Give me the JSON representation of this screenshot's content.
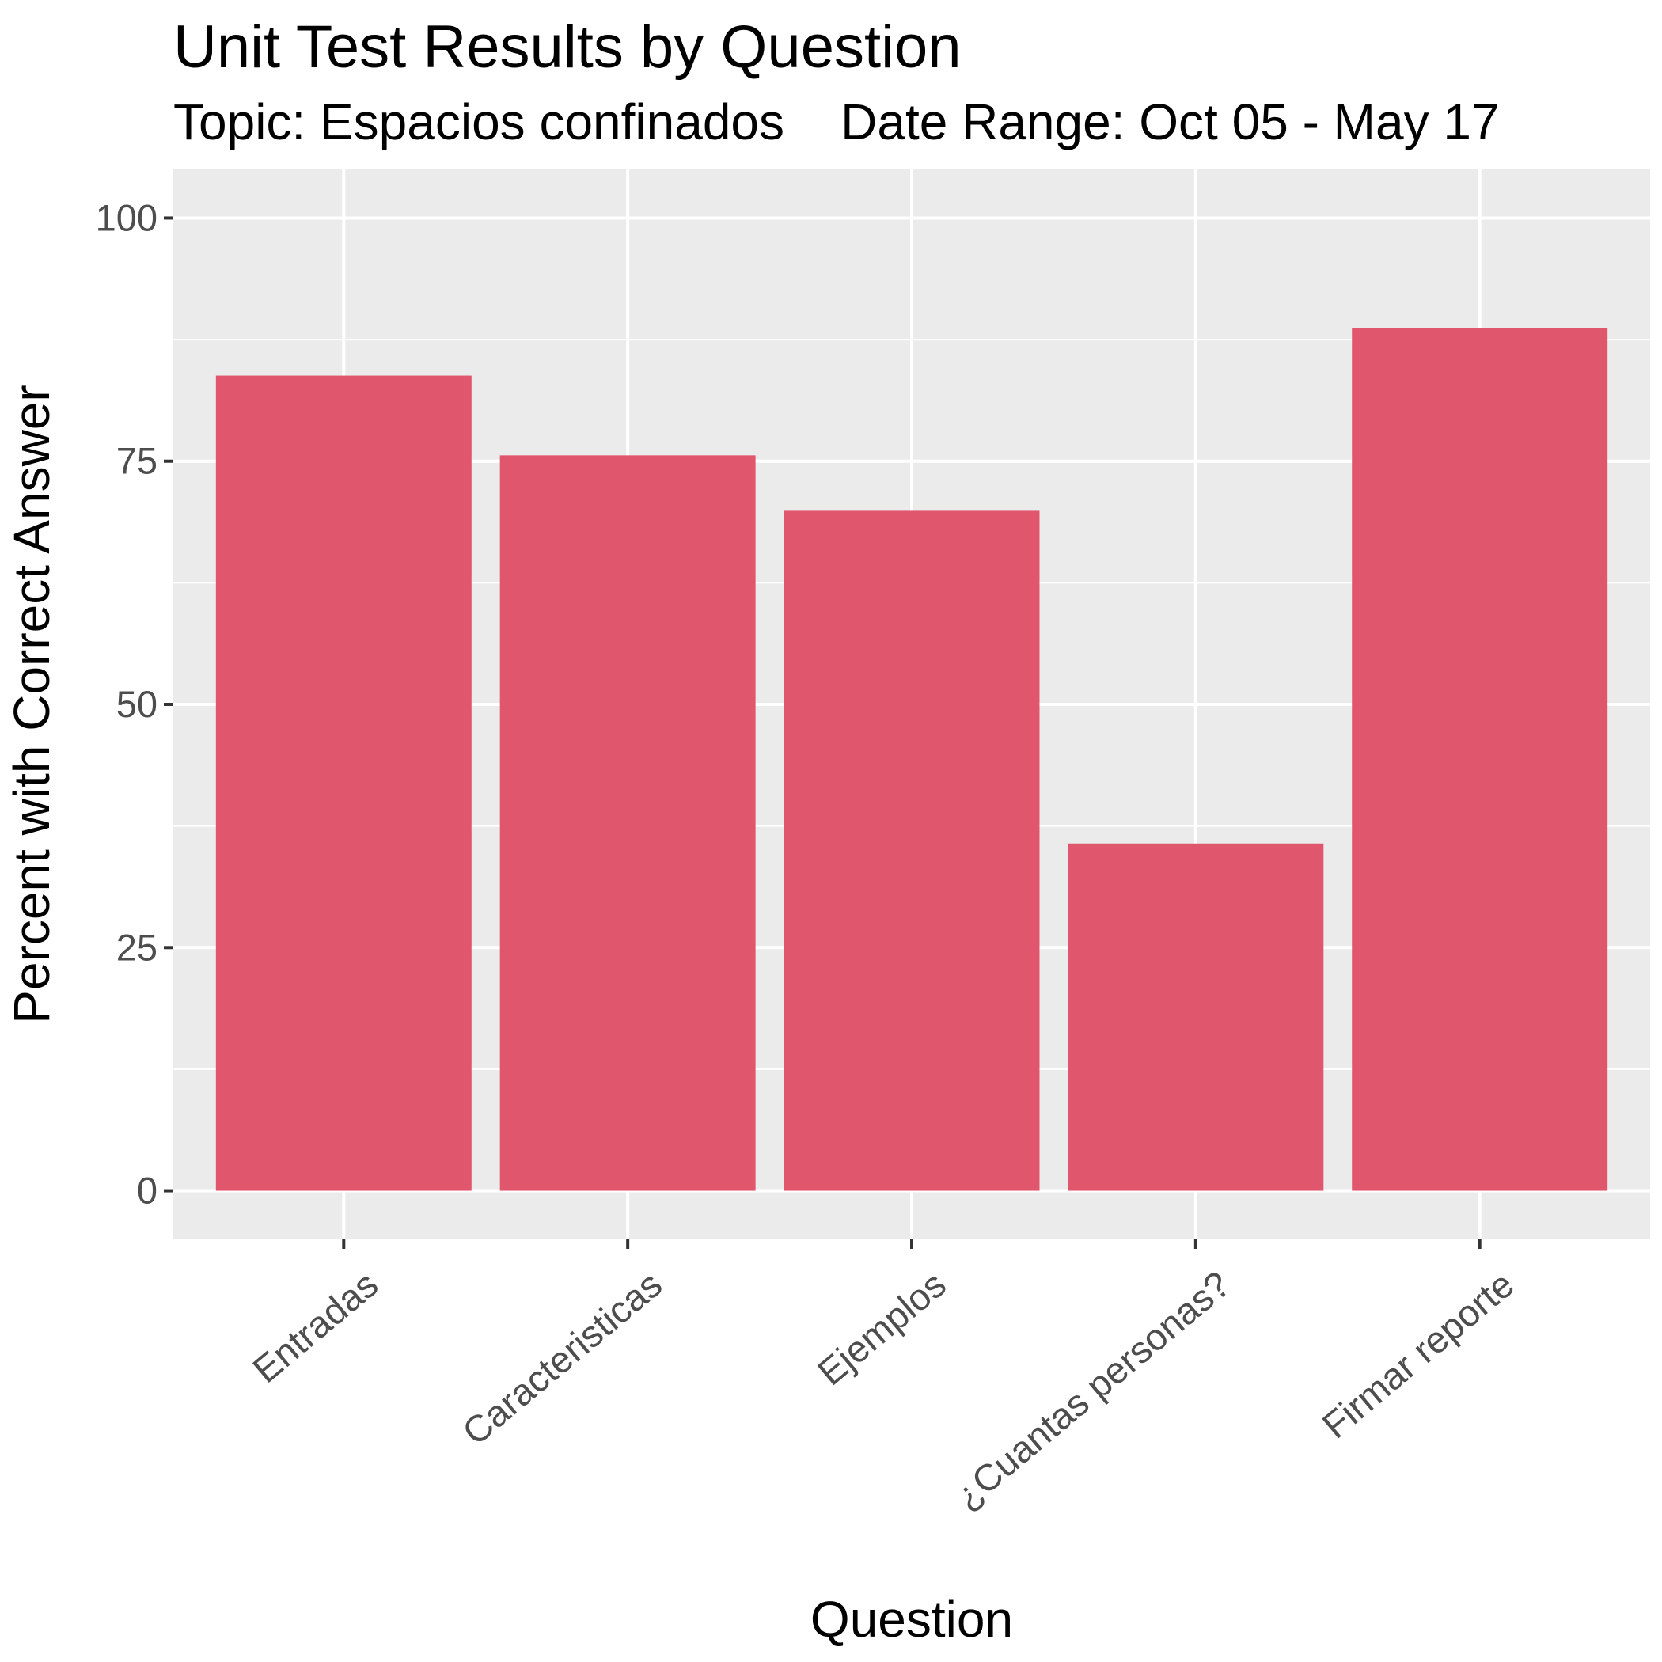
{
  "chart_data": {
    "type": "bar",
    "title": "Unit Test Results by Question",
    "subtitle": "Topic: Espacios confinados    Date Range: Oct 05 - May 17",
    "xlabel": "Question",
    "ylabel": "Percent with Correct Answer",
    "categories": [
      "Entradas",
      "Caracteristicas",
      "Ejemplos",
      "¿Cuantas personas?",
      "Firmar reporte"
    ],
    "values": [
      83.8,
      75.6,
      69.9,
      35.7,
      88.7
    ],
    "yticks": [
      0,
      25,
      50,
      75,
      100
    ],
    "ylim": [
      -5,
      105
    ],
    "grid": true,
    "bar_color": "#e0566c",
    "panel_color": "#ebebeb",
    "grid_color": "#ffffff"
  }
}
